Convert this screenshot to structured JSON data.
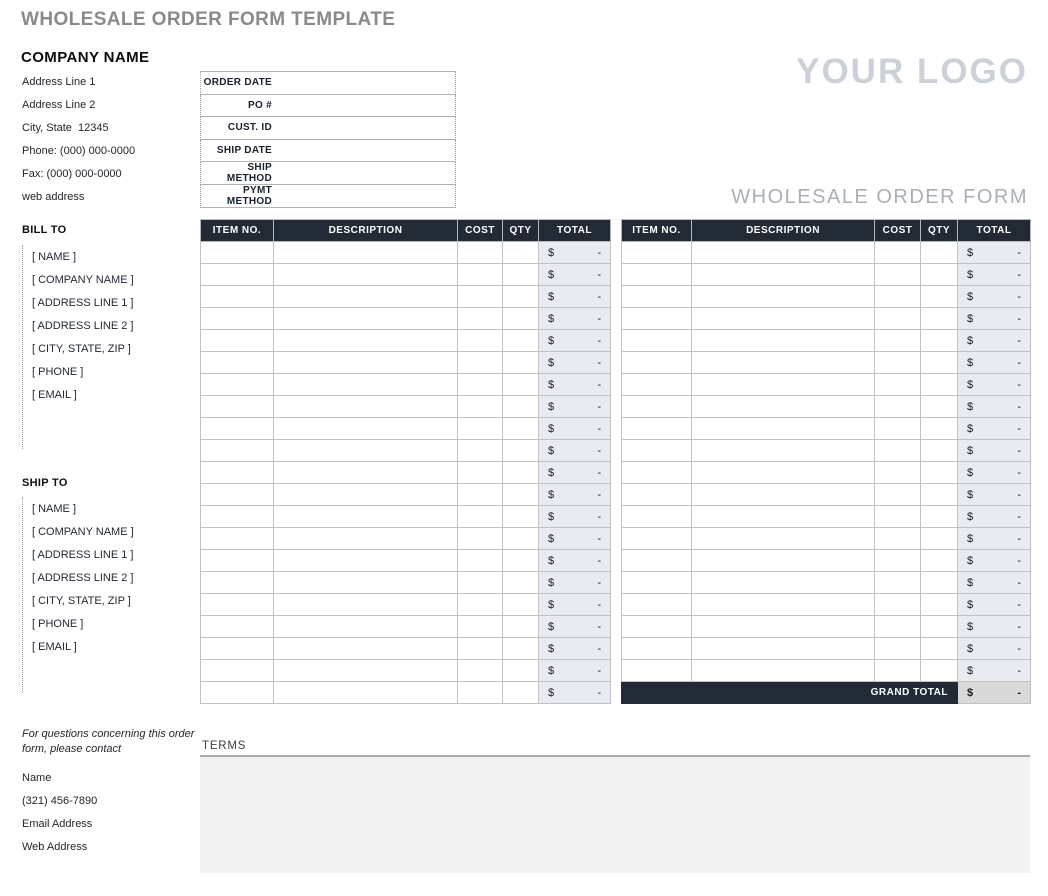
{
  "page_title": "WHOLESALE ORDER FORM TEMPLATE",
  "logo_text": "YOUR LOGO",
  "form_heading": "WHOLESALE ORDER FORM",
  "company": {
    "name": "COMPANY NAME",
    "lines": [
      "Address Line 1",
      "Address Line 2",
      "City, State  12345",
      "Phone: (000) 000-0000",
      "Fax: (000) 000-0000",
      "web address"
    ]
  },
  "order_info": {
    "fields": [
      {
        "label": "ORDER DATE",
        "value": ""
      },
      {
        "label": "PO #",
        "value": ""
      },
      {
        "label": "CUST. ID",
        "value": ""
      },
      {
        "label": "SHIP DATE",
        "value": ""
      },
      {
        "label": "SHIP METHOD",
        "value": ""
      },
      {
        "label": "PYMT METHOD",
        "value": ""
      }
    ]
  },
  "bill_to": {
    "heading": "BILL TO",
    "fields": [
      "[ NAME ]",
      "[ COMPANY NAME ]",
      "[ ADDRESS LINE 1 ]",
      "[ ADDRESS LINE 2 ]",
      "[ CITY, STATE, ZIP ]",
      "[ PHONE ]",
      "[ EMAIL ]"
    ]
  },
  "ship_to": {
    "heading": "SHIP TO",
    "fields": [
      "[ NAME ]",
      "[ COMPANY NAME ]",
      "[ ADDRESS LINE 1 ]",
      "[ ADDRESS LINE 2 ]",
      "[ CITY, STATE, ZIP ]",
      "[ PHONE ]",
      "[ EMAIL ]"
    ]
  },
  "order_tables": {
    "headers": [
      "ITEM NO.",
      "DESCRIPTION",
      "COST",
      "QTY",
      "TOTAL"
    ],
    "currency_symbol": "$",
    "empty_total": "-",
    "left_table_rows": 21,
    "right_table_rows": 20,
    "grand_total_label": "GRAND TOTAL"
  },
  "contact": {
    "note": "For questions concerning this order form, please contact",
    "lines": [
      "Name",
      "(321) 456-7890",
      "Email Address",
      "Web Address"
    ]
  },
  "terms": {
    "heading": "TERMS"
  },
  "colors": {
    "table_header_bg": "#222B35",
    "total_cell_bg": "#E9EBF2",
    "grand_total_cell_bg": "#D9D9D9",
    "title_gray": "#8A8A8A",
    "logo_gray": "#CCD1D9",
    "form_heading_gray": "#A9AFB7",
    "terms_box_bg": "#F2F2F2"
  }
}
